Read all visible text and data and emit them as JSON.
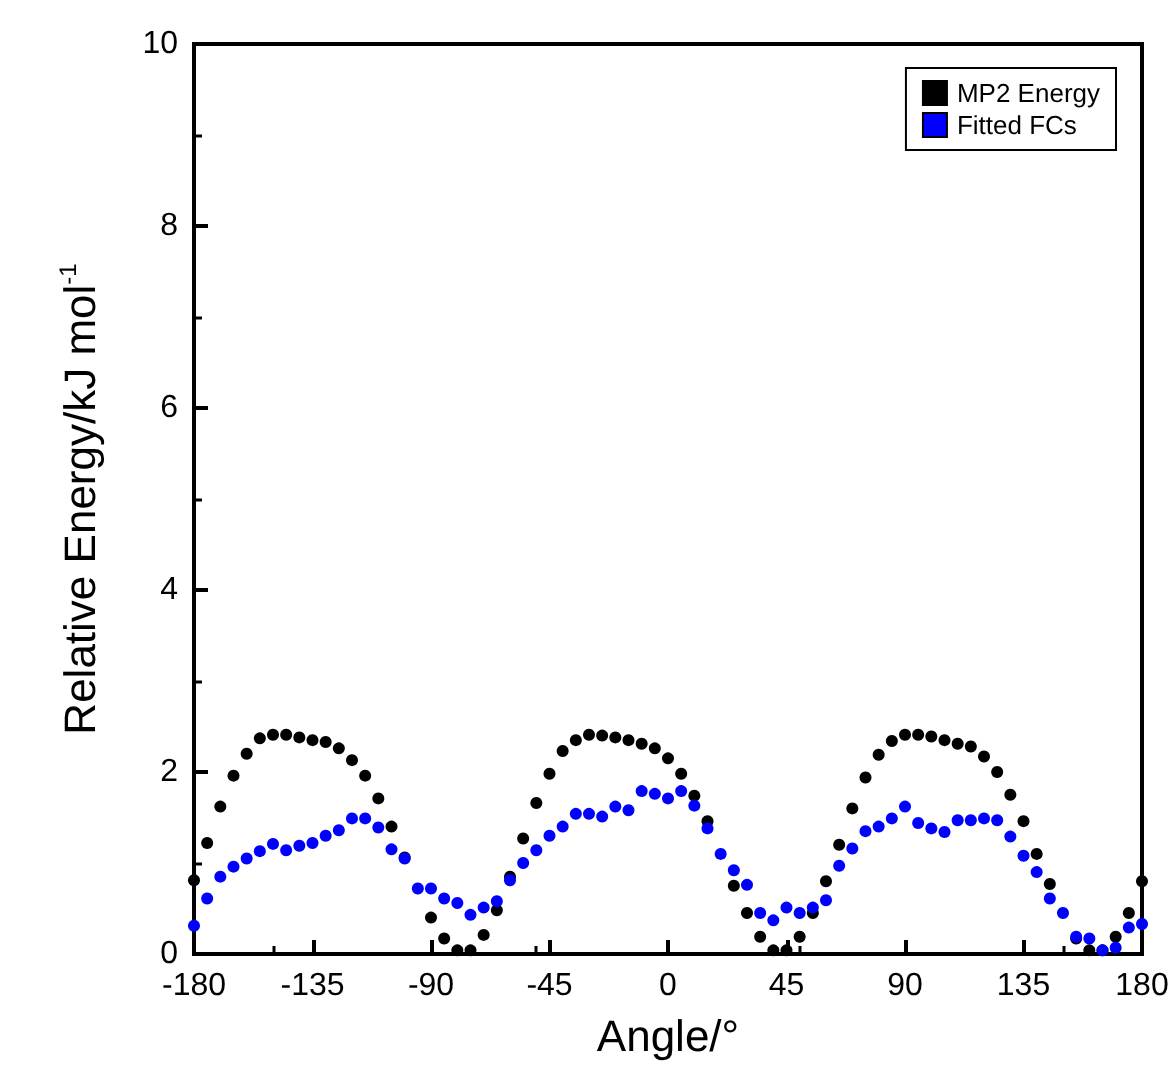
{
  "chart_data": {
    "type": "scatter",
    "xlabel": "Angle/°",
    "ylabel": "Relative Energy/kJ mol$^{-1}$",
    "x": [
      -180,
      -175,
      -170,
      -165,
      -160,
      -155,
      -150,
      -145,
      -140,
      -135,
      -130,
      -125,
      -120,
      -115,
      -110,
      -105,
      -100,
      -95,
      -90,
      -85,
      -80,
      -75,
      -70,
      -65,
      -60,
      -55,
      -50,
      -45,
      -40,
      -35,
      -30,
      -25,
      -20,
      -15,
      -10,
      -5,
      0,
      5,
      10,
      15,
      20,
      25,
      30,
      35,
      40,
      45,
      50,
      55,
      60,
      65,
      70,
      75,
      80,
      85,
      90,
      95,
      100,
      105,
      110,
      115,
      120,
      125,
      130,
      135,
      140,
      145,
      150,
      155,
      160,
      165,
      170,
      175,
      180
    ],
    "series": [
      {
        "name": "MP2 Energy",
        "color": "#000000",
        "values": [
          0.81,
          1.22,
          1.62,
          1.96,
          2.2,
          2.37,
          2.41,
          2.41,
          2.38,
          2.35,
          2.33,
          2.26,
          2.13,
          1.96,
          1.71,
          1.4,
          1.06,
          null,
          0.4,
          0.17,
          0.04,
          0.04,
          0.21,
          0.48,
          0.85,
          1.27,
          1.66,
          1.98,
          2.23,
          2.35,
          2.41,
          2.4,
          2.38,
          2.35,
          2.31,
          2.26,
          2.15,
          1.98,
          1.74,
          1.46,
          null,
          0.75,
          0.45,
          0.19,
          0.04,
          0.04,
          0.19,
          0.45,
          0.8,
          1.2,
          1.6,
          1.94,
          2.19,
          2.34,
          2.41,
          2.41,
          2.39,
          2.35,
          2.31,
          2.28,
          2.17,
          2.0,
          1.75,
          1.46,
          1.1,
          0.77,
          null,
          0.17,
          0.04,
          0.04,
          0.19,
          0.45,
          0.8
        ]
      },
      {
        "name": "Fitted FCs",
        "color": "#0000ff",
        "values": [
          0.31,
          0.61,
          0.85,
          0.96,
          1.05,
          1.13,
          1.21,
          1.14,
          1.19,
          1.22,
          1.3,
          1.36,
          1.49,
          1.49,
          1.39,
          1.15,
          1.05,
          0.72,
          0.72,
          0.61,
          0.56,
          0.43,
          0.51,
          0.58,
          0.81,
          1.0,
          1.14,
          1.3,
          1.4,
          1.54,
          1.54,
          1.51,
          1.62,
          1.58,
          1.79,
          1.76,
          1.71,
          1.79,
          1.63,
          1.38,
          1.1,
          0.92,
          0.76,
          0.45,
          0.37,
          0.51,
          0.45,
          0.51,
          0.59,
          0.97,
          1.16,
          1.35,
          1.4,
          1.49,
          1.62,
          1.44,
          1.38,
          1.34,
          1.47,
          1.47,
          1.49,
          1.47,
          1.29,
          1.08,
          0.9,
          0.61,
          0.45,
          0.19,
          0.17,
          0.04,
          0.07,
          0.29,
          0.33
        ]
      }
    ],
    "xlim": [
      -180,
      180
    ],
    "xticks": [
      -180,
      -135,
      -90,
      -45,
      0,
      45,
      90,
      135,
      180
    ],
    "ylim": [
      0,
      10
    ],
    "yticks": [
      0,
      2,
      4,
      6,
      8,
      10
    ],
    "grid": false,
    "legend": "top right",
    "marker": "circle"
  }
}
